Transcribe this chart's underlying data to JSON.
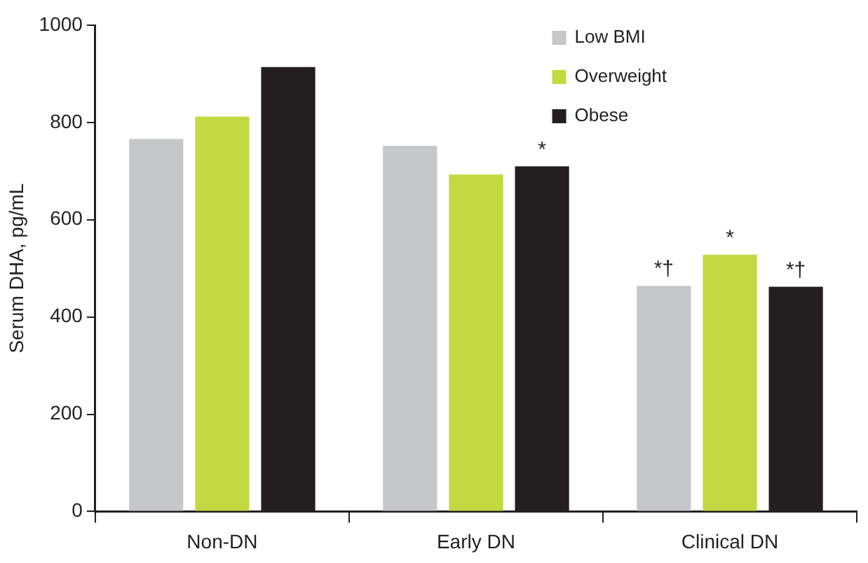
{
  "chart_data": {
    "type": "bar",
    "ylabel": "Serum DHA, pg/mL",
    "categories": [
      "Non-DN",
      "Early DN",
      "Clinical DN"
    ],
    "series": [
      {
        "name": "Low BMI",
        "color": "#c6c7c9",
        "values": [
          766,
          752,
          464
        ]
      },
      {
        "name": "Overweight",
        "color": "#c2d941",
        "values": [
          812,
          693,
          528
        ]
      },
      {
        "name": "Obese",
        "color": "#231f20",
        "values": [
          914,
          710,
          462
        ]
      }
    ],
    "ylim": [
      0,
      1000
    ],
    "yticks": [
      0,
      200,
      400,
      600,
      800,
      1000
    ],
    "grid": false,
    "legend": "top right",
    "annotations": [
      "*",
      "*†",
      "*",
      "*†"
    ]
  }
}
